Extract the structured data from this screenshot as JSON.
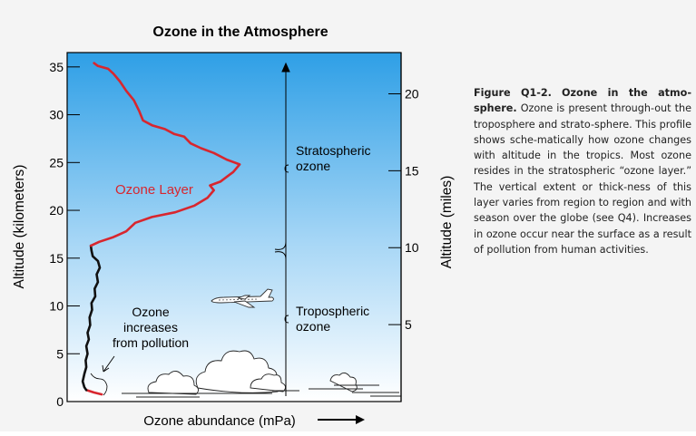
{
  "chart_data": {
    "type": "line",
    "title": "Ozone in the Atmosphere",
    "xlabel": "Ozone abundance (mPa)",
    "ylabel": "Altitude (kilometers)",
    "ylabel_right": "Altitude (miles)",
    "ylim": [
      0,
      36.5
    ],
    "yticks": [
      0,
      5,
      10,
      15,
      20,
      25,
      30,
      35
    ],
    "ylim_right": [
      0,
      22.68
    ],
    "yticks_right": [
      5,
      10,
      15,
      20
    ],
    "grid": false,
    "series": [
      {
        "color": "#d8262e",
        "points": [
          [
            0.5,
            1.2
          ],
          [
            1.1,
            0.95
          ],
          [
            1.7,
            0.75
          ]
        ]
      },
      {
        "color": "#111111",
        "points": [
          [
            0.5,
            1.2
          ],
          [
            0.35,
            1.5
          ],
          [
            0.22,
            2.1
          ],
          [
            0.35,
            2.9
          ],
          [
            0.5,
            3.6
          ],
          [
            0.45,
            4.3
          ],
          [
            0.6,
            5.0
          ],
          [
            0.5,
            5.8
          ],
          [
            0.7,
            6.5
          ],
          [
            0.6,
            7.2
          ],
          [
            0.8,
            8.0
          ],
          [
            0.75,
            8.8
          ],
          [
            0.95,
            9.6
          ],
          [
            0.9,
            10.3
          ],
          [
            1.2,
            11.0
          ],
          [
            1.15,
            11.8
          ],
          [
            1.4,
            12.5
          ],
          [
            1.3,
            13.3
          ],
          [
            1.55,
            14.0
          ],
          [
            1.4,
            14.7
          ],
          [
            1.0,
            15.2
          ],
          [
            0.9,
            15.8
          ],
          [
            0.85,
            16.3
          ]
        ]
      },
      {
        "color": "#d8262e",
        "points": [
          [
            0.85,
            16.3
          ],
          [
            1.5,
            16.7
          ],
          [
            2.6,
            17.2
          ],
          [
            3.6,
            17.8
          ],
          [
            4.3,
            18.7
          ],
          [
            5.6,
            19.3
          ],
          [
            7.4,
            19.8
          ],
          [
            8.9,
            20.5
          ],
          [
            9.9,
            21.3
          ],
          [
            10.4,
            22.1
          ],
          [
            10.1,
            22.6
          ],
          [
            10.9,
            23.0
          ],
          [
            11.4,
            23.5
          ],
          [
            11.9,
            24.0
          ],
          [
            12.4,
            24.8
          ],
          [
            11.4,
            25.3
          ],
          [
            10.4,
            26.0
          ],
          [
            9.4,
            26.5
          ],
          [
            8.6,
            27.0
          ],
          [
            8.1,
            27.7
          ],
          [
            7.3,
            28.0
          ],
          [
            6.6,
            28.5
          ],
          [
            5.6,
            28.9
          ],
          [
            4.9,
            29.4
          ],
          [
            4.6,
            30.4
          ],
          [
            4.2,
            31.5
          ],
          [
            3.6,
            32.5
          ],
          [
            3.1,
            33.5
          ],
          [
            2.6,
            34.3
          ],
          [
            2.2,
            34.8
          ],
          [
            1.4,
            35.1
          ],
          [
            1.1,
            35.4
          ]
        ]
      }
    ],
    "annotations": [
      {
        "text": "Ozone Layer",
        "color": "#d8262e"
      },
      {
        "text": "Ozone increases from pollution"
      },
      {
        "text": "Stratospheric ozone"
      },
      {
        "text": "Tropospheric ozone"
      }
    ]
  },
  "annotations_text": {
    "ozone_layer": "Ozone Layer",
    "pollution_lines": [
      "Ozone",
      "increases",
      "from pollution"
    ],
    "strat_lines": [
      "Stratospheric",
      "ozone"
    ],
    "trop_lines": [
      "Tropospheric",
      "ozone"
    ]
  },
  "caption": {
    "figure_label": "Figure Q1-2.",
    "figure_title": "Ozone in the atmo-sphere.",
    "body": "Ozone is present through-out the troposphere and strato-sphere. This profile shows sche-matically how ozone changes with altitude in the tropics. Most ozone resides in the stratospheric “ozone layer.” The vertical extent or thick-ness of this layer varies from region to region and with season over the globe (see Q4). Increases in ozone occur near the surface as a result of pollution from human activities."
  },
  "colors": {
    "sky_top": "#2e9fe6",
    "sky_bottom": "#ffffff",
    "ozone_red": "#d8262e",
    "ozone_black": "#111111"
  }
}
